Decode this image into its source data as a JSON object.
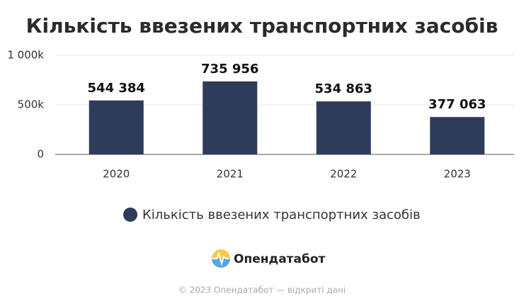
{
  "chart_data": {
    "type": "bar",
    "title": "Кількість ввезених транспортних засобів",
    "categories": [
      "2020",
      "2021",
      "2022",
      "2023"
    ],
    "series": [
      {
        "name": "Кількість ввезених транспортних засобів",
        "color": "#2e3b5b",
        "values": [
          544384,
          735956,
          534863,
          377063
        ],
        "value_labels": [
          "544 384",
          "735 956",
          "534 863",
          "377 063"
        ]
      }
    ],
    "ylim": [
      0,
      1000000
    ],
    "yticks": [
      0,
      {
        "value": 500000,
        "label": "500k"
      },
      {
        "value": 1000000,
        "label": "1 000k"
      }
    ],
    "grid": true,
    "legend": "bottom"
  },
  "footer": {
    "brand": "Опендатабот",
    "copyright": "© 2023 Опендатабот — відкриті дані"
  }
}
